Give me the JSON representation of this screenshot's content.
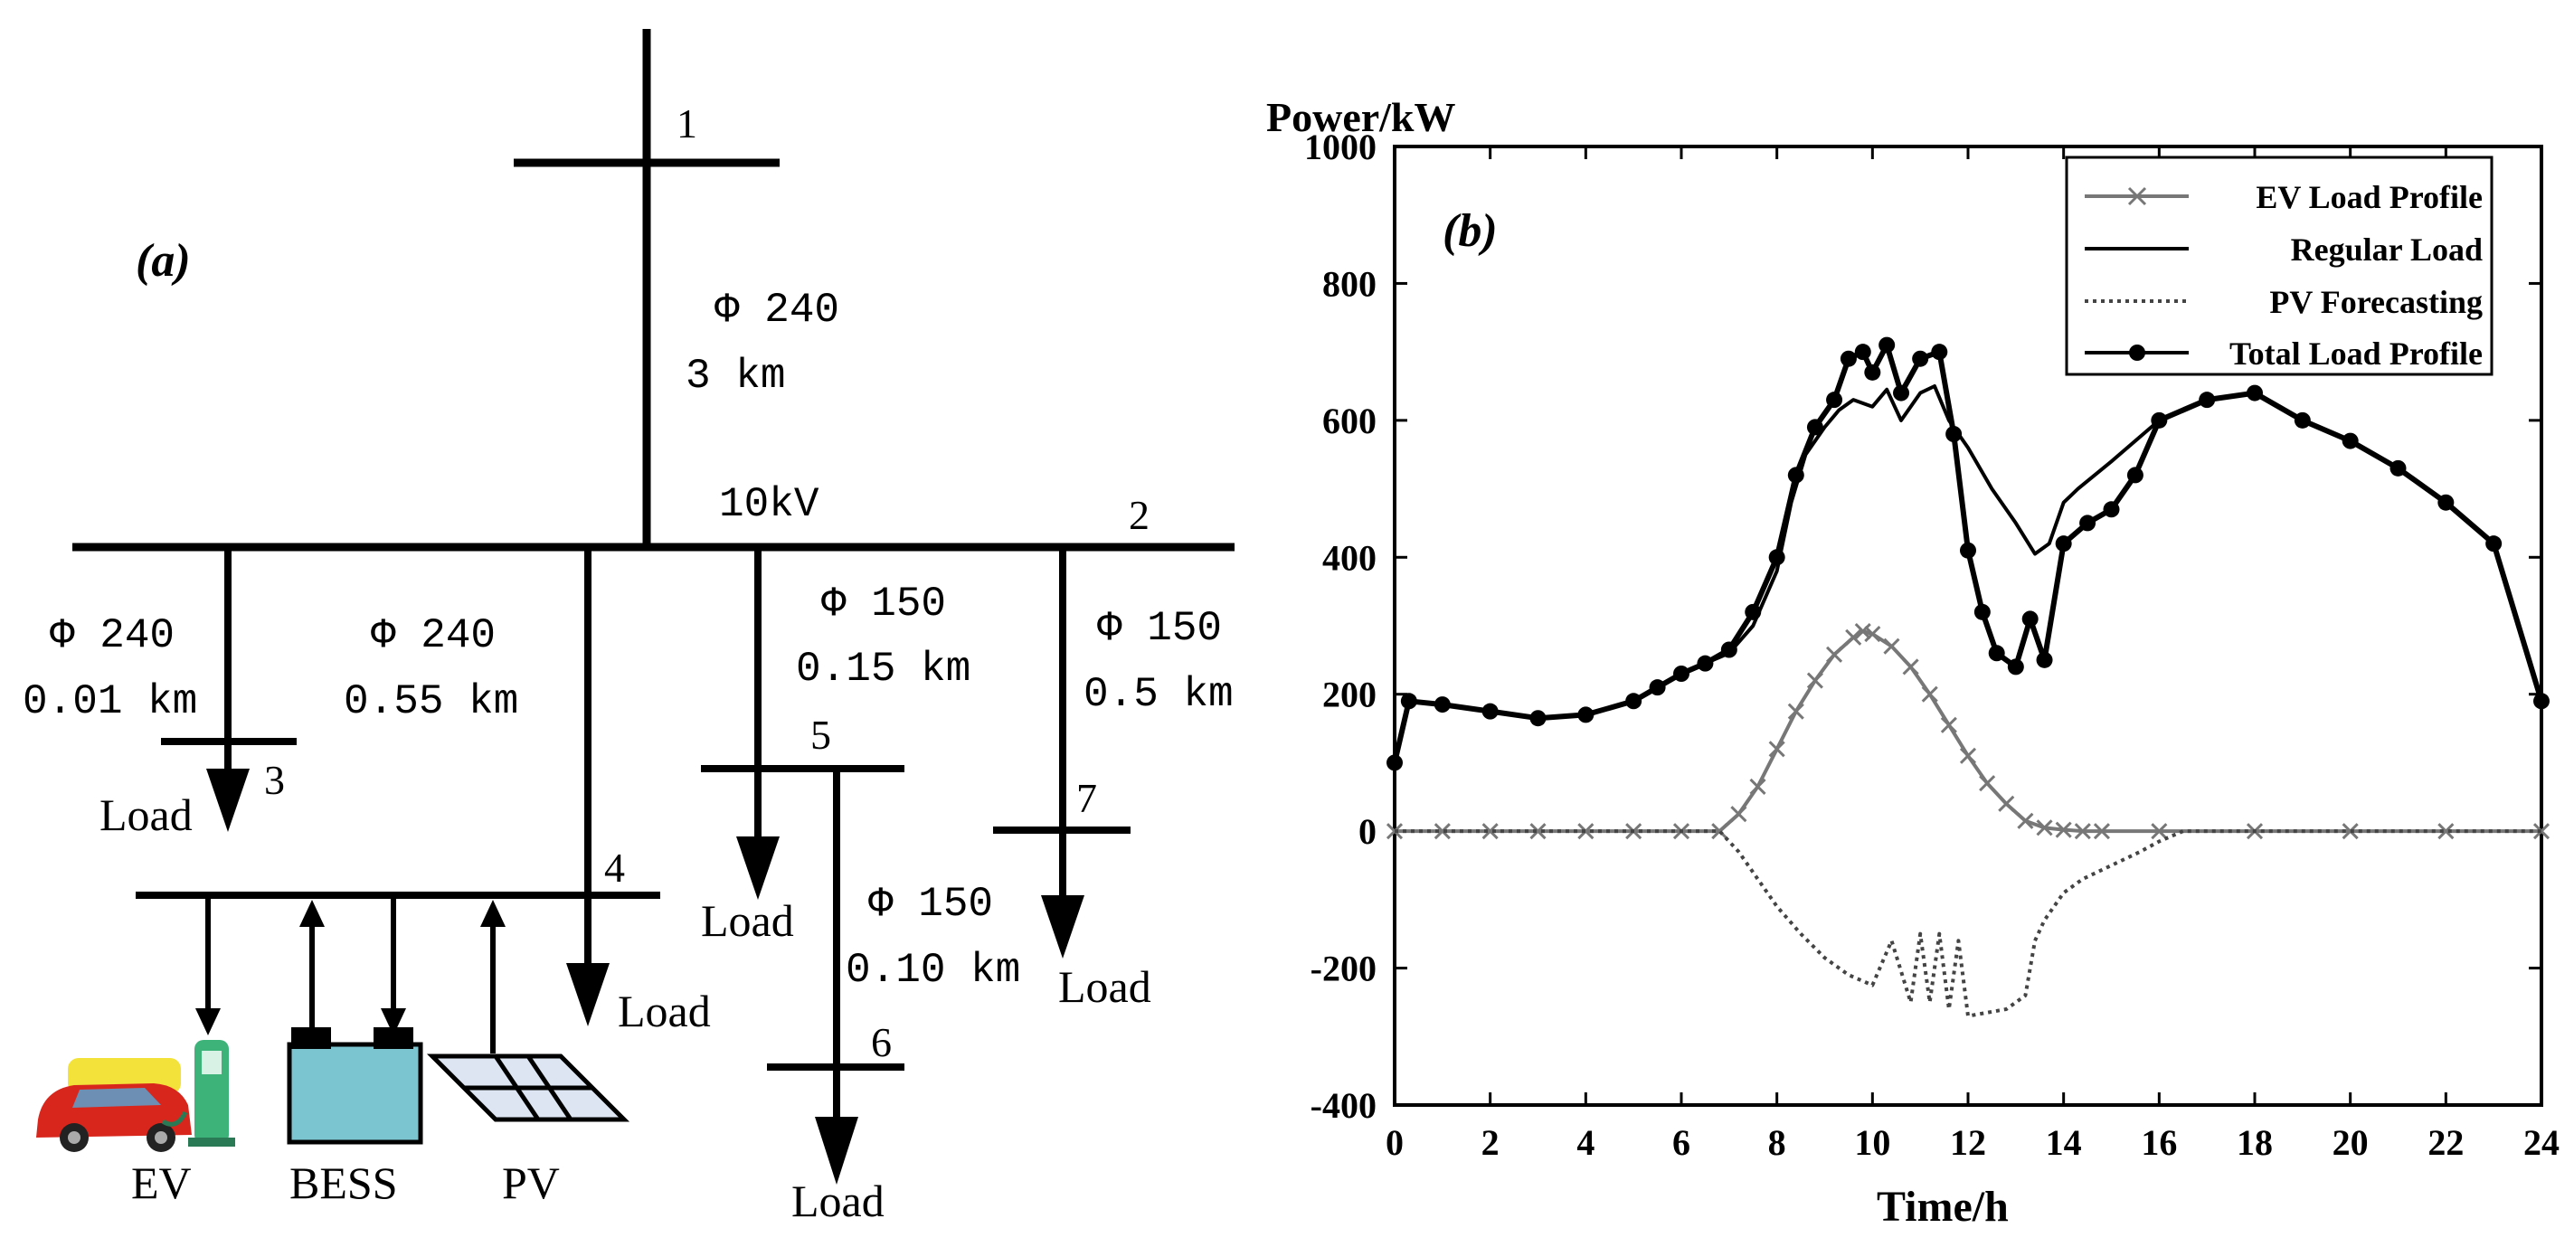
{
  "panel_a": {
    "label": "(a)",
    "bus_labels": [
      "1",
      "2",
      "3",
      "4",
      "5",
      "6",
      "7"
    ],
    "voltage": "10kV",
    "lines": [
      {
        "id": "1-2",
        "conductor": "Φ 240",
        "length": "3 km"
      },
      {
        "id": "2-3",
        "conductor": "Φ 240",
        "length": "0.01 km"
      },
      {
        "id": "2-4",
        "conductor": "Φ 240",
        "length": "0.55 km"
      },
      {
        "id": "2-5",
        "conductor": "Φ 150",
        "length": "0.15 km"
      },
      {
        "id": "2-7",
        "conductor": "Φ 150",
        "length": "0.5 km"
      },
      {
        "id": "5-6",
        "conductor": "Φ 150",
        "length": "0.10 km"
      }
    ],
    "load_label": "Load",
    "devices": [
      "EV",
      "BESS",
      "PV"
    ]
  },
  "chart_data": {
    "type": "line",
    "panel_label": "(b)",
    "title": "",
    "ylabel": "Power/kW",
    "xlabel": "Time/h",
    "xlim": [
      0,
      24
    ],
    "ylim": [
      -400,
      1000
    ],
    "xticks": [
      0,
      2,
      4,
      6,
      8,
      10,
      12,
      14,
      16,
      18,
      20,
      22,
      24
    ],
    "yticks": [
      -400,
      -200,
      0,
      200,
      400,
      600,
      800,
      1000
    ],
    "legend_position": "top-right",
    "series": [
      {
        "name": "EV Load Profile",
        "marker": "x",
        "style": "solid",
        "color": "#777777",
        "x": [
          0,
          1,
          2,
          3,
          4,
          5,
          6,
          6.8,
          7.2,
          7.6,
          8,
          8.4,
          8.8,
          9.2,
          9.6,
          9.8,
          10,
          10.4,
          10.8,
          11.2,
          11.6,
          12,
          12.4,
          12.8,
          13.2,
          13.6,
          14,
          14.4,
          14.8,
          16,
          18,
          20,
          22,
          24
        ],
        "y": [
          0,
          0,
          0,
          0,
          0,
          0,
          0,
          0,
          25,
          65,
          120,
          175,
          220,
          258,
          283,
          292,
          288,
          270,
          240,
          200,
          155,
          110,
          70,
          40,
          15,
          5,
          2,
          0,
          0,
          0,
          0,
          0,
          0,
          0
        ]
      },
      {
        "name": "Regular Load",
        "marker": "none",
        "style": "solid",
        "color": "#000000",
        "x": [
          0,
          0.3,
          1,
          2,
          3,
          4,
          5,
          5.5,
          6,
          6.5,
          7,
          7.5,
          8,
          8.3,
          8.6,
          9,
          9.3,
          9.6,
          10,
          10.3,
          10.6,
          11,
          11.3,
          11.6,
          12,
          12.5,
          13,
          13.4,
          13.7,
          14,
          14.3,
          15,
          16,
          17,
          18,
          19,
          20,
          21,
          22,
          23,
          24
        ],
        "y": [
          100,
          190,
          185,
          175,
          165,
          170,
          190,
          210,
          230,
          245,
          260,
          300,
          380,
          480,
          550,
          590,
          615,
          630,
          620,
          645,
          600,
          640,
          650,
          600,
          560,
          500,
          450,
          405,
          420,
          480,
          500,
          540,
          600,
          630,
          640,
          600,
          570,
          530,
          480,
          420,
          190
        ]
      },
      {
        "name": "PV Forecasting",
        "marker": "none",
        "style": "dotted",
        "color": "#444444",
        "x": [
          0,
          6,
          6.8,
          7.2,
          7.6,
          8,
          8.5,
          9,
          9.5,
          10,
          10.4,
          10.8,
          11,
          11.2,
          11.4,
          11.6,
          11.8,
          12,
          12.4,
          12.8,
          13.2,
          13.4,
          13.6,
          14,
          14.4,
          15,
          15.6,
          16,
          16.5,
          24
        ],
        "y": [
          0,
          0,
          0,
          -30,
          -70,
          -110,
          -150,
          -185,
          -210,
          -225,
          -160,
          -250,
          -150,
          -250,
          -150,
          -260,
          -160,
          -270,
          -265,
          -260,
          -240,
          -160,
          -130,
          -90,
          -70,
          -50,
          -30,
          -15,
          0,
          0
        ]
      },
      {
        "name": "Total Load Profile",
        "marker": "dot",
        "style": "solid",
        "color": "#000000",
        "x": [
          0,
          0.3,
          1,
          2,
          3,
          4,
          5,
          5.5,
          6,
          6.5,
          7,
          7.5,
          8,
          8.4,
          8.8,
          9.2,
          9.5,
          9.8,
          10,
          10.3,
          10.6,
          11,
          11.4,
          11.7,
          12,
          12.3,
          12.6,
          13,
          13.3,
          13.6,
          14,
          14.5,
          15,
          15.5,
          16,
          17,
          18,
          19,
          20,
          21,
          22,
          23,
          24
        ],
        "y": [
          100,
          190,
          185,
          175,
          165,
          170,
          190,
          210,
          230,
          245,
          265,
          320,
          400,
          520,
          590,
          630,
          690,
          700,
          670,
          710,
          640,
          690,
          700,
          580,
          410,
          320,
          260,
          240,
          310,
          250,
          420,
          450,
          470,
          520,
          600,
          630,
          640,
          600,
          570,
          530,
          480,
          420,
          190
        ]
      }
    ]
  }
}
